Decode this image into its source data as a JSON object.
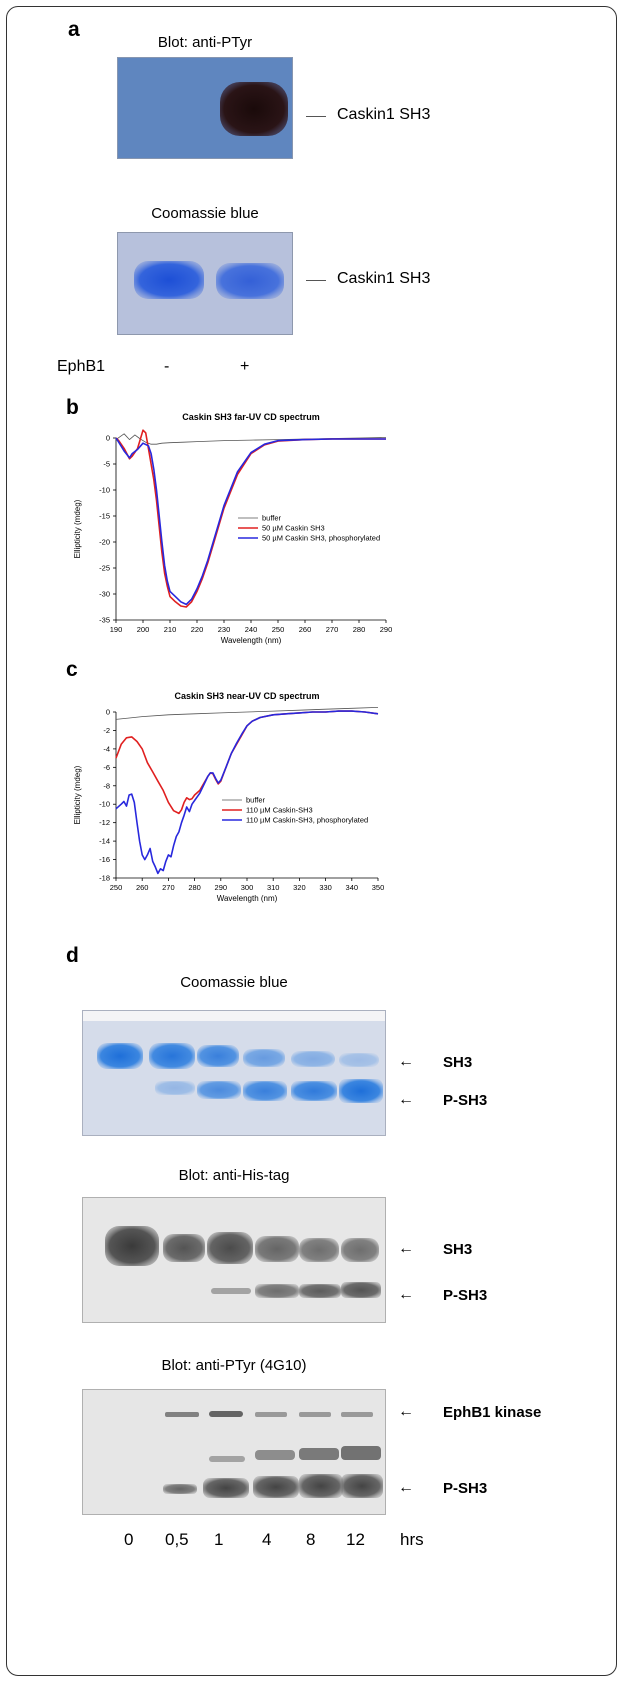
{
  "panel_a": {
    "letter": "a",
    "blot1_title": "Blot:  anti-PTyr",
    "blot1_band": "Caskin1 SH3",
    "blot2_title": "Coomassie blue",
    "blot2_band": "Caskin1 SH3",
    "row_label": "EphB1",
    "lanes": [
      "-",
      "+"
    ]
  },
  "panel_b": {
    "letter": "b"
  },
  "panel_c": {
    "letter": "c"
  },
  "panel_d": {
    "letter": "d",
    "gel1_title": "Coomassie blue",
    "gel1_labels": [
      "SH3",
      "P-SH3"
    ],
    "gel2_title": "Blot: anti-His-tag",
    "gel2_labels": [
      "SH3",
      "P-SH3"
    ],
    "gel3_title": "Blot: anti-PTyr (4G10)",
    "gel3_labels": [
      "EphB1 kinase",
      "P-SH3"
    ],
    "timepoints": [
      "0",
      "0,5",
      "1",
      "4",
      "8",
      "12"
    ],
    "time_unit": "hrs",
    "arrow_glyph": "←"
  },
  "chart_data": [
    {
      "type": "line",
      "title": "Caskin SH3 far-UV CD spectrum",
      "xlabel": "Wavelength (nm)",
      "ylabel": "Ellipticity (mdeg)",
      "xlim": [
        190,
        290
      ],
      "ylim": [
        -35,
        0
      ],
      "xticks": [
        190,
        200,
        210,
        220,
        230,
        240,
        250,
        260,
        270,
        280,
        290
      ],
      "yticks": [
        0,
        -5,
        -10,
        -15,
        -20,
        -25,
        -30,
        -35
      ],
      "legend_position": "center-right",
      "grid": false,
      "series": [
        {
          "name": "buffer",
          "color": "#555555",
          "x": [
            190,
            193,
            195,
            197,
            199,
            201,
            203,
            205,
            207,
            210,
            215,
            220,
            230,
            240,
            250,
            260,
            270,
            280,
            290
          ],
          "y": [
            -0.3,
            0.8,
            -0.3,
            0.6,
            -0.2,
            -0.8,
            -1.2,
            -1.2,
            -1.0,
            -0.9,
            -0.8,
            -0.7,
            -0.5,
            -0.4,
            -0.3,
            -0.2,
            -0.1,
            0.0,
            0.1
          ]
        },
        {
          "name": "50 µM Caskin SH3",
          "color": "#e02020",
          "x": [
            190,
            191,
            193,
            195,
            196,
            198,
            200,
            201,
            202,
            203,
            204,
            205,
            206,
            207,
            208,
            209,
            210,
            212,
            214,
            216,
            218,
            220,
            222,
            224,
            226,
            228,
            230,
            235,
            240,
            245,
            250,
            260,
            270,
            280,
            290
          ],
          "y": [
            0.0,
            -0.5,
            -2.0,
            -4.0,
            -3.5,
            -2.0,
            1.5,
            1.0,
            -2.0,
            -5.0,
            -8.0,
            -12.0,
            -17.0,
            -22.0,
            -26.0,
            -28.5,
            -30.5,
            -31.5,
            -32.3,
            -32.5,
            -31.5,
            -29.5,
            -27.0,
            -24.0,
            -20.5,
            -17.0,
            -13.5,
            -7.0,
            -3.0,
            -1.3,
            -0.6,
            -0.3,
            -0.2,
            -0.2,
            -0.2
          ]
        },
        {
          "name": "50 µM Caskin SH3, phosphorylated",
          "color": "#2828dd",
          "x": [
            190,
            191,
            193,
            195,
            196,
            198,
            200,
            202,
            203,
            204,
            205,
            206,
            207,
            208,
            209,
            210,
            212,
            214,
            216,
            218,
            220,
            222,
            224,
            226,
            228,
            230,
            235,
            240,
            245,
            250,
            260,
            270,
            280,
            290
          ],
          "y": [
            0.0,
            -0.8,
            -2.5,
            -3.8,
            -3.0,
            -2.2,
            -1.0,
            -1.5,
            -3.0,
            -6.0,
            -10.0,
            -15.0,
            -20.0,
            -24.5,
            -27.5,
            -29.5,
            -30.5,
            -31.5,
            -32.0,
            -31.0,
            -29.0,
            -26.5,
            -23.5,
            -20.0,
            -16.5,
            -13.0,
            -6.5,
            -2.8,
            -1.2,
            -0.5,
            -0.3,
            -0.2,
            -0.2,
            -0.2
          ]
        }
      ]
    },
    {
      "type": "line",
      "title": "Caskin SH3 near-UV CD spectrum",
      "xlabel": "Wavelength (nm)",
      "ylabel": "Ellipticity (mdeg)",
      "xlim": [
        250,
        350
      ],
      "ylim": [
        -18,
        0
      ],
      "xticks": [
        250,
        260,
        270,
        280,
        290,
        300,
        310,
        320,
        330,
        340,
        350
      ],
      "yticks": [
        0,
        -2,
        -4,
        -6,
        -8,
        -10,
        -12,
        -14,
        -16,
        -18
      ],
      "legend_position": "center-right",
      "grid": false,
      "series": [
        {
          "name": "buffer",
          "color": "#555555",
          "x": [
            250,
            260,
            270,
            280,
            290,
            300,
            310,
            320,
            330,
            340,
            350
          ],
          "y": [
            -0.8,
            -0.5,
            -0.3,
            -0.2,
            -0.1,
            0.0,
            0.1,
            0.2,
            0.3,
            0.4,
            0.5
          ]
        },
        {
          "name": "110 µM Caskin-SH3",
          "color": "#e02020",
          "x": [
            250,
            252,
            254,
            256,
            258,
            260,
            262,
            264,
            266,
            268,
            270,
            272,
            274,
            275,
            276,
            277,
            278,
            279,
            280,
            282,
            284,
            285,
            286,
            287,
            288,
            289,
            290,
            292,
            294,
            296,
            298,
            300,
            302,
            305,
            310,
            315,
            320,
            325,
            330,
            335,
            340,
            345,
            350
          ],
          "y": [
            -5.0,
            -3.5,
            -2.8,
            -2.7,
            -3.2,
            -4.0,
            -5.5,
            -6.5,
            -7.5,
            -8.5,
            -9.8,
            -10.7,
            -11.0,
            -10.6,
            -9.8,
            -9.3,
            -9.5,
            -9.4,
            -9.0,
            -8.5,
            -7.5,
            -7.0,
            -6.6,
            -6.7,
            -7.3,
            -7.8,
            -7.5,
            -6.0,
            -4.5,
            -3.5,
            -2.5,
            -1.5,
            -1.0,
            -0.6,
            -0.3,
            -0.2,
            -0.1,
            0.0,
            0.0,
            0.1,
            0.1,
            0.0,
            -0.2
          ]
        },
        {
          "name": "110 µM Caskin-SH3, phosphorylated",
          "color": "#2828dd",
          "x": [
            250,
            252,
            253,
            254,
            255,
            256,
            257,
            258,
            259,
            260,
            261,
            262,
            263,
            264,
            265,
            266,
            267,
            268,
            269,
            270,
            271,
            272,
            273,
            274,
            275,
            276,
            277,
            278,
            279,
            280,
            282,
            284,
            285,
            286,
            287,
            288,
            289,
            290,
            292,
            294,
            296,
            298,
            300,
            302,
            305,
            310,
            315,
            320,
            325,
            330,
            335,
            340,
            345,
            350
          ],
          "y": [
            -10.5,
            -10.0,
            -9.7,
            -10.2,
            -9.0,
            -8.9,
            -9.8,
            -12.0,
            -14.0,
            -15.5,
            -16.0,
            -15.5,
            -14.8,
            -16.2,
            -16.8,
            -17.5,
            -17.0,
            -17.2,
            -16.2,
            -15.5,
            -15.7,
            -14.5,
            -13.5,
            -13.0,
            -12.0,
            -11.2,
            -10.3,
            -10.8,
            -10.0,
            -9.6,
            -8.8,
            -7.6,
            -7.0,
            -6.6,
            -6.6,
            -7.2,
            -7.7,
            -7.4,
            -6.0,
            -4.5,
            -3.4,
            -2.4,
            -1.5,
            -1.0,
            -0.6,
            -0.3,
            -0.2,
            -0.1,
            0.0,
            0.0,
            0.1,
            0.1,
            0.0,
            -0.2
          ]
        }
      ]
    }
  ]
}
